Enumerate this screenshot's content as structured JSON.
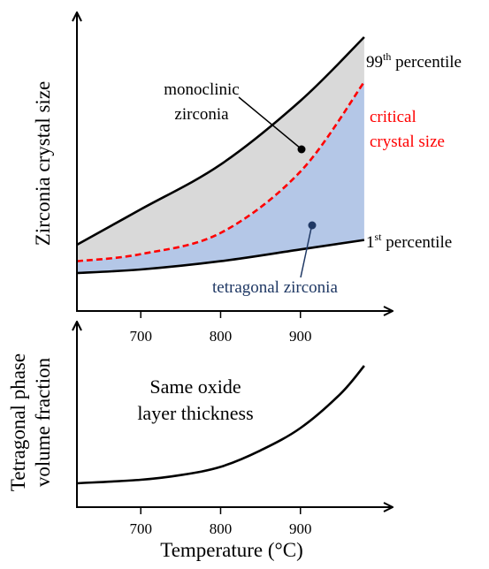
{
  "colors": {
    "axis": "#000000",
    "band_upper": "#d9d9d9",
    "band_lower": "#b4c7e7",
    "critical": "#ff0000",
    "tetragonal_label": "#1f3864"
  },
  "chart_data": [
    {
      "type": "area",
      "ylabel": "Zirconia crystal size",
      "x_ticks": [
        "700",
        "800",
        "900"
      ],
      "x_range": [
        620,
        1000
      ],
      "y_scale": "relative (no tick values printed)",
      "series": [
        {
          "name": "99th percentile",
          "x": [
            620,
            700,
            800,
            900,
            980
          ],
          "y": [
            0.12,
            0.27,
            0.46,
            0.73,
            1.0
          ]
        },
        {
          "name": "critical crystal size",
          "x": [
            620,
            700,
            800,
            900,
            980
          ],
          "y": [
            0.05,
            0.08,
            0.17,
            0.43,
            0.81
          ]
        },
        {
          "name": "1st percentile",
          "x": [
            620,
            700,
            800,
            900,
            980
          ],
          "y": [
            0.0,
            0.015,
            0.05,
            0.1,
            0.14
          ]
        }
      ],
      "labels": {
        "p99_main": "99",
        "p99_sup": "th",
        "p99_rest": " percentile",
        "p1_main": "1",
        "p1_sup": "st",
        "p1_rest": " percentile",
        "critical_line1": "critical",
        "critical_line2": "crystal size",
        "monoclinic_line1": "monoclinic",
        "monoclinic_line2": "zirconia",
        "tetragonal": "tetragonal zirconia"
      }
    },
    {
      "type": "line",
      "ylabel_line1": "Tetragonal phase",
      "ylabel_line2": "volume fraction",
      "xlabel": "Temperature (°C)",
      "x_ticks": [
        "700",
        "800",
        "900"
      ],
      "x_range": [
        620,
        1000
      ],
      "y_scale": "relative (no tick values printed)",
      "series": [
        {
          "x": [
            620,
            700,
            750,
            800,
            850,
            900,
            950,
            980
          ],
          "y": [
            0.0,
            0.03,
            0.07,
            0.14,
            0.28,
            0.47,
            0.76,
            1.0
          ]
        }
      ],
      "annotation_line1": "Same oxide",
      "annotation_line2": "layer thickness"
    }
  ]
}
